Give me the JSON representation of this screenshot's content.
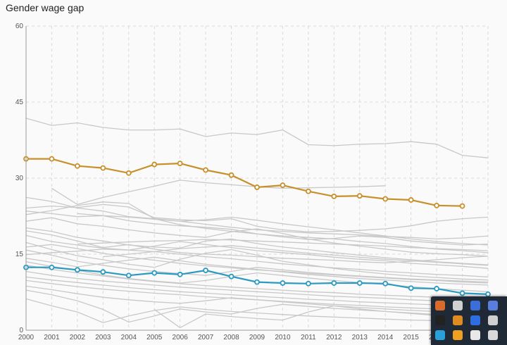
{
  "title": "Gender wage gap",
  "chart_data": {
    "type": "line",
    "title": "Gender wage gap",
    "xlabel": "",
    "ylabel": "",
    "x": [
      2000,
      2001,
      2002,
      2003,
      2004,
      2005,
      2006,
      2007,
      2008,
      2009,
      2010,
      2011,
      2012,
      2013,
      2014,
      2015,
      2016,
      2017,
      2018
    ],
    "xlim": [
      2000,
      2018
    ],
    "ylim": [
      0,
      60
    ],
    "yticks": [
      0,
      15,
      30,
      45,
      60
    ],
    "grid": true,
    "highlighted_series": [
      {
        "color": "#c8902a",
        "values": [
          33.8,
          33.8,
          32.4,
          32.0,
          31.0,
          32.7,
          32.9,
          31.6,
          30.6,
          28.2,
          28.6,
          27.4,
          26.4,
          26.5,
          25.9,
          25.7,
          24.6,
          24.5,
          null
        ]
      },
      {
        "color": "#2a9ac0",
        "values": [
          12.4,
          12.4,
          11.9,
          11.5,
          10.8,
          11.3,
          11.0,
          11.8,
          10.6,
          9.5,
          9.3,
          9.2,
          9.3,
          9.3,
          9.2,
          8.3,
          8.2,
          7.3,
          7.1
        ]
      }
    ],
    "background_series_color": "#c8c8c8",
    "background_series": [
      [
        41.8,
        40.4,
        40.9,
        40.0,
        39.5,
        39.5,
        39.7,
        38.2,
        38.9,
        38.6,
        39.5,
        36.6,
        36.4,
        36.7,
        36.8,
        37.2,
        36.7,
        34.5,
        34.0
      ],
      [
        null,
        28.0,
        24.8,
        26.2,
        27.3,
        28.4,
        29.6,
        29.1,
        28.7,
        28.3,
        28.0,
        28.1,
        28.2,
        28.3,
        28.5,
        null,
        null,
        null,
        null
      ],
      [
        26.2,
        25.4,
        24.1,
        23.5,
        22.4,
        22.0,
        21.5,
        20.9,
        20.3,
        19.8,
        19.5,
        19.2,
        19.0,
        18.8,
        18.5,
        18.3,
        18.0,
        18.2,
        18.6
      ],
      [
        24.1,
        24.5,
        24.2,
        24.8,
        24.3,
        22.2,
        21.8,
        21.6,
        22.0,
        20.5,
        19.8,
        19.4,
        19.5,
        19.7,
        20.0,
        20.6,
        21.5,
        22.0,
        22.3
      ],
      [
        23.5,
        23.0,
        22.4,
        22.6,
        21.6,
        21.0,
        20.6,
        20.3,
        19.9,
        19.0,
        18.4,
        17.9,
        18.1,
        18.6,
        18.3,
        17.6,
        17.2,
        16.8,
        17.0
      ],
      [
        22.8,
        23.6,
        24.6,
        25.3,
        25.0,
        22.0,
        20.8,
        20.1,
        19.5,
        19.0,
        18.6,
        18.3,
        18.0,
        17.5,
        17.1,
        16.5,
        16.0,
        15.7,
        15.3
      ],
      [
        21.5,
        22.2,
        21.0,
        20.5,
        19.8,
        19.2,
        18.7,
        18.3,
        19.4,
        20.0,
        19.1,
        18.0,
        17.2,
        16.6,
        16.0,
        15.4,
        15.1,
        14.9,
        14.6
      ],
      [
        20.2,
        19.5,
        18.3,
        17.6,
        16.8,
        16.4,
        16.2,
        17.6,
        18.0,
        17.1,
        16.4,
        15.9,
        15.3,
        14.8,
        14.3,
        13.9,
        13.5,
        13.2,
        12.9
      ],
      [
        19.6,
        18.8,
        17.6,
        16.3,
        16.9,
        16.0,
        15.3,
        15.0,
        14.8,
        14.5,
        14.2,
        14.0,
        13.8,
        13.5,
        13.3,
        13.6,
        13.9,
        14.3,
        14.6
      ],
      [
        18.7,
        17.5,
        16.8,
        16.2,
        15.8,
        16.6,
        17.5,
        16.9,
        16.3,
        15.7,
        15.3,
        14.9,
        14.4,
        14.0,
        13.7,
        13.2,
        12.9,
        12.6,
        12.2
      ],
      [
        17.3,
        15.9,
        14.7,
        13.9,
        13.0,
        12.4,
        14.0,
        15.2,
        15.9,
        14.8,
        13.6,
        12.9,
        12.2,
        11.6,
        11.1,
        10.7,
        10.4,
        10.1,
        9.9
      ],
      [
        16.4,
        16.9,
        16.1,
        15.2,
        14.4,
        13.8,
        13.2,
        12.7,
        12.3,
        11.9,
        11.6,
        11.2,
        10.9,
        10.6,
        10.3,
        10.0,
        9.8,
        9.5,
        9.3
      ],
      [
        15.8,
        14.8,
        13.6,
        12.8,
        12.1,
        11.6,
        11.2,
        10.8,
        11.6,
        12.4,
        11.9,
        11.4,
        11.0,
        10.7,
        10.4,
        10.1,
        9.9,
        9.7,
        9.5
      ],
      [
        14.9,
        15.3,
        15.6,
        16.0,
        15.8,
        15.5,
        15.0,
        14.5,
        14.1,
        13.6,
        13.1,
        12.7,
        12.3,
        12.0,
        11.6,
        11.3,
        11.0,
        10.8,
        10.5
      ],
      [
        14.2,
        13.4,
        12.5,
        13.2,
        13.8,
        14.4,
        13.7,
        13.0,
        12.5,
        12.0,
        11.5,
        11.0,
        10.6,
        10.2,
        9.9,
        9.6,
        9.3,
        9.1,
        8.9
      ],
      [
        13.5,
        12.6,
        11.8,
        10.9,
        10.2,
        9.7,
        9.3,
        9.8,
        10.6,
        11.3,
        10.8,
        10.3,
        9.8,
        9.4,
        9.0,
        8.6,
        8.2,
        7.9,
        7.6
      ],
      [
        12.8,
        12.0,
        11.3,
        10.7,
        10.1,
        9.6,
        9.2,
        8.8,
        8.5,
        8.2,
        7.9,
        7.6,
        7.4,
        7.1,
        6.9,
        6.7,
        6.5,
        6.3,
        6.1
      ],
      [
        11.6,
        10.8,
        10.2,
        9.7,
        9.3,
        8.9,
        8.5,
        8.2,
        7.9,
        7.6,
        7.3,
        7.0,
        6.7,
        6.5,
        6.3,
        6.0,
        5.8,
        5.6,
        5.4
      ],
      [
        10.5,
        9.9,
        9.4,
        8.9,
        8.4,
        8.0,
        7.6,
        7.3,
        7.0,
        6.7,
        6.4,
        6.1,
        5.9,
        5.6,
        5.4,
        5.2,
        5.0,
        4.8,
        4.6
      ],
      [
        9.8,
        9.2,
        8.6,
        8.1,
        7.7,
        7.3,
        7.0,
        6.6,
        6.3,
        6.0,
        5.7,
        5.4,
        5.1,
        4.9,
        4.6,
        4.4,
        4.2,
        4.0,
        3.8
      ],
      [
        8.7,
        8.0,
        7.2,
        6.5,
        6.0,
        5.6,
        5.3,
        5.8,
        6.4,
        6.0,
        5.6,
        5.2,
        4.8,
        4.5,
        4.2,
        3.9,
        3.7,
        3.5,
        3.3
      ],
      [
        7.9,
        7.0,
        5.8,
        4.1,
        1.6,
        2.8,
        4.2,
        3.6,
        3.2,
        4.3,
        5.1,
        4.7,
        4.3,
        4.0,
        3.7,
        3.4,
        3.1,
        2.9,
        2.7
      ],
      [
        6.2,
        4.8,
        3.6,
        1.5,
        2.8,
        3.9,
        4.6,
        4.1,
        3.7,
        3.4,
        3.1,
        2.8,
        2.6,
        2.4,
        2.2,
        2.0,
        1.9,
        1.8,
        1.7
      ],
      [
        null,
        null,
        null,
        null,
        null,
        4.1,
        0.5,
        3.2,
        2.7,
        2.3,
        2.0,
        3.6,
        4.8,
        4.2,
        3.7,
        3.3,
        2.9,
        2.6,
        2.4
      ],
      [
        null,
        null,
        17.0,
        17.2,
        17.4,
        17.6,
        17.7,
        17.9,
        17.8,
        17.6,
        17.4,
        17.2,
        17.0,
        16.8,
        16.6,
        16.3,
        16.1,
        15.9,
        15.7
      ],
      [
        null,
        null,
        23.0,
        22.6,
        22.3,
        21.9,
        21.5,
        21.8,
        22.3,
        21.7,
        21.0,
        20.4,
        19.8,
        19.2,
        18.6,
        18.0,
        17.5,
        17.1,
        16.8
      ],
      [
        null,
        null,
        null,
        14.5,
        15.0,
        15.5,
        16.1,
        16.4,
        16.7,
        16.2,
        15.7,
        15.2,
        14.8,
        14.4,
        14.0,
        13.7,
        13.4,
        13.1,
        12.8
      ]
    ]
  },
  "tray": {
    "icons": [
      {
        "name": "speaker-icon",
        "color": "#d86a2c"
      },
      {
        "name": "mouse-icon",
        "color": "#d0d0d0"
      },
      {
        "name": "network-icon",
        "color": "#3a6fd8"
      },
      {
        "name": "display-icon",
        "color": "#5a7ee0"
      },
      {
        "name": "phone-icon",
        "color": "#222222"
      },
      {
        "name": "archive-icon",
        "color": "#e08a22"
      },
      {
        "name": "bluetooth-icon",
        "color": "#2f6ee0"
      },
      {
        "name": "volume-icon",
        "color": "#cfcfcf"
      },
      {
        "name": "globe-icon",
        "color": "#2aa0d8"
      },
      {
        "name": "power-icon",
        "color": "#f0a020"
      },
      {
        "name": "shield-icon",
        "color": "#e8e8e8"
      },
      {
        "name": "usb-icon",
        "color": "#d8d8d8"
      }
    ]
  }
}
